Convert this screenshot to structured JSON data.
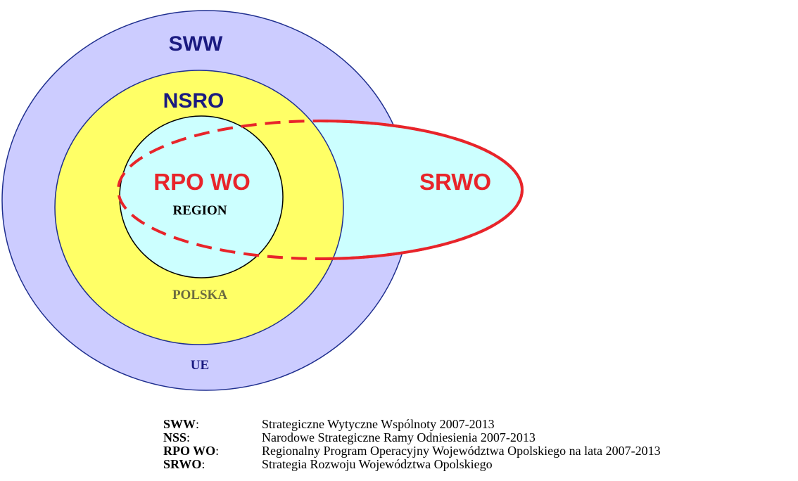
{
  "diagram": {
    "labels": {
      "sww": "SWW",
      "nsro": "NSRO",
      "rpo": "RPO WO",
      "region": "REGION",
      "polska": "POLSKA",
      "ue": "UE",
      "srwo": "SRWO"
    },
    "legend": [
      {
        "term": "SWW",
        "separator": ":",
        "definition": "Strategiczne Wytyczne Wspólnoty 2007-2013"
      },
      {
        "term": "NSS",
        "separator": ":",
        "definition": "Narodowe Strategiczne Ramy Odniesienia 2007-2013"
      },
      {
        "term": "RPO WO",
        "separator": ":",
        "definition": "Regionalny Program Operacyjny Województwa Opolskiego na lata 2007-2013"
      },
      {
        "term": "SRWO",
        "separator": ":",
        "definition": "Strategia Rozwoju Województwa Opolskiego"
      }
    ]
  }
}
